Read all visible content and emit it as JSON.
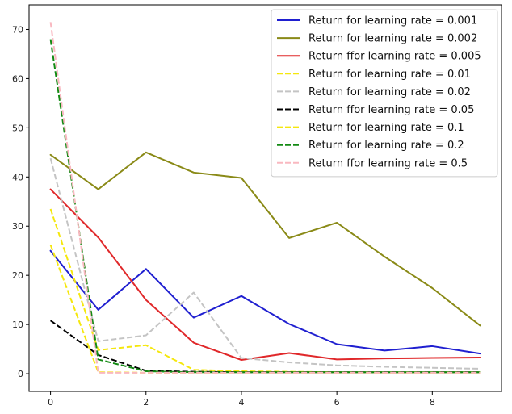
{
  "chart_data": {
    "type": "line",
    "title": "",
    "xlabel": "",
    "ylabel": "",
    "xlim": [
      -0.45,
      9.45
    ],
    "ylim": [
      -3.6,
      75
    ],
    "x_ticks": [
      0,
      2,
      4,
      6,
      8
    ],
    "y_ticks": [
      0,
      10,
      20,
      30,
      40,
      50,
      60,
      70
    ],
    "grid": false,
    "legend_position": "top-right",
    "x": [
      0,
      1,
      2,
      3,
      4,
      5,
      6,
      7,
      8,
      9
    ],
    "series": [
      {
        "name": "Return for learning rate = 0.001",
        "color": "#1f1fd0",
        "style": "solid",
        "values": [
          25.0,
          13.0,
          21.3,
          11.4,
          15.8,
          10.1,
          6.0,
          4.7,
          5.6,
          4.1
        ]
      },
      {
        "name": "Return for learning rate = 0.002",
        "color": "#8a8a17",
        "style": "solid",
        "values": [
          44.5,
          37.5,
          45.0,
          40.9,
          39.8,
          27.6,
          30.7,
          23.8,
          17.4,
          9.8
        ]
      },
      {
        "name": "Return ffor learning rate = 0.005",
        "color": "#e0282a",
        "style": "solid",
        "values": [
          37.5,
          27.7,
          15.0,
          6.3,
          2.8,
          4.2,
          2.9,
          3.1,
          3.2,
          3.3
        ]
      },
      {
        "name": "Return for learning rate = 0.01",
        "color": "#f5e70d",
        "style": "dashed",
        "values": [
          33.5,
          4.8,
          5.8,
          0.8,
          0.5,
          0.4,
          0.3,
          0.3,
          0.3,
          0.3
        ]
      },
      {
        "name": "Return for learning rate = 0.02",
        "color": "#c4c4c4",
        "style": "dashed",
        "values": [
          43.8,
          6.6,
          7.8,
          16.5,
          3.2,
          2.3,
          1.7,
          1.4,
          1.2,
          1.0
        ]
      },
      {
        "name": "Return ffor learning rate = 0.05",
        "color": "#000000",
        "style": "dashed",
        "values": [
          10.8,
          3.8,
          0.6,
          0.4,
          0.3,
          0.3,
          0.3,
          0.3,
          0.3,
          0.3
        ]
      },
      {
        "name": "Return for learning rate = 0.1",
        "color": "#f5e70d",
        "style": "dashed",
        "values": [
          26.2,
          0.3,
          0.2,
          0.2,
          0.2,
          0.2,
          0.2,
          0.2,
          0.2,
          0.2
        ]
      },
      {
        "name": "Return for learning rate = 0.2",
        "color": "#138a13",
        "style": "dashed",
        "values": [
          68.0,
          2.9,
          0.5,
          0.3,
          0.3,
          0.3,
          0.3,
          0.3,
          0.3,
          0.3
        ]
      },
      {
        "name": "Return ffor learning rate = 0.5",
        "color": "#f9b8c0",
        "style": "dashed",
        "values": [
          71.5,
          0.2,
          0.2,
          0.2,
          0.2,
          0.2,
          0.2,
          0.2,
          0.2,
          0.2
        ]
      }
    ]
  }
}
